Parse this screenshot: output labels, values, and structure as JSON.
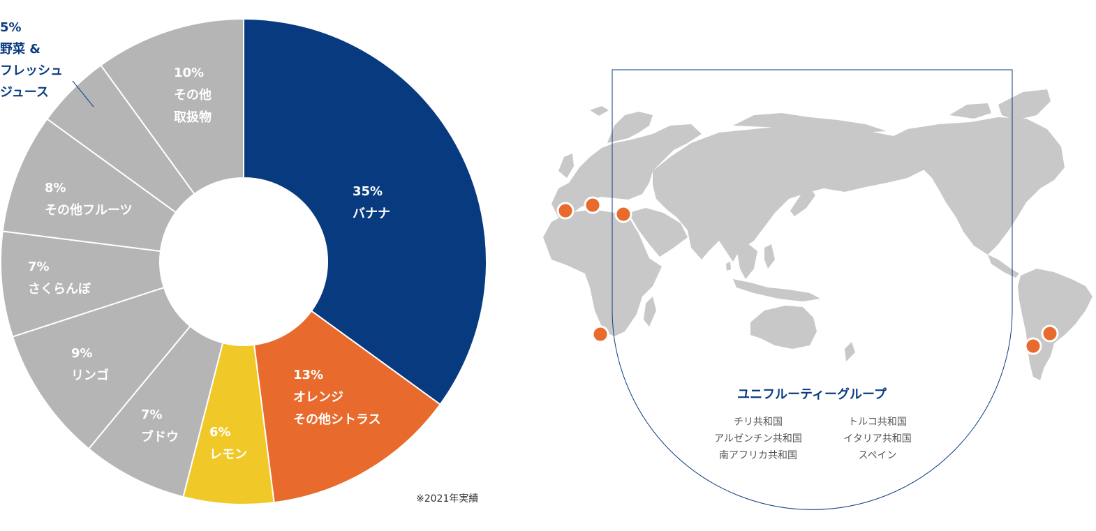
{
  "colors": {
    "banana": "#083a7f",
    "orange": "#e86a2c",
    "lemon": "#f0c928",
    "other": "#b5b5b5",
    "accent": "#0a3b80",
    "land": "#c8c8c8",
    "marker": "#e86a2c"
  },
  "chart_data": {
    "type": "pie",
    "donut": true,
    "start": "top, clockwise",
    "slices": [
      {
        "label_lines": [
          "35%",
          "バナナ"
        ],
        "value": 35,
        "color_key": "banana"
      },
      {
        "label_lines": [
          "13%",
          "オレンジ",
          "その他シトラス"
        ],
        "value": 13,
        "color_key": "orange"
      },
      {
        "label_lines": [
          "6%",
          "レモン"
        ],
        "value": 6,
        "color_key": "lemon"
      },
      {
        "label_lines": [
          "7%",
          "ブドウ"
        ],
        "value": 7,
        "color_key": "other"
      },
      {
        "label_lines": [
          "9%",
          "リンゴ"
        ],
        "value": 9,
        "color_key": "other"
      },
      {
        "label_lines": [
          "7%",
          "さくらんぼ"
        ],
        "value": 7,
        "color_key": "other"
      },
      {
        "label_lines": [
          "8%",
          "その他フルーツ"
        ],
        "value": 8,
        "color_key": "other"
      },
      {
        "label_lines": [
          "5%",
          "野菜 &",
          "フレッシュ",
          "ジュース"
        ],
        "value": 5,
        "color_key": "other",
        "outside": true
      },
      {
        "label_lines": [
          "10%",
          "その他",
          "取扱物"
        ],
        "value": 10,
        "color_key": "other"
      }
    ],
    "note": "※2021年実績"
  },
  "map": {
    "group_title": "ユニフルーティーグループ",
    "countries_left": [
      "チリ共和国",
      "アルゼンチン共和国",
      "南アフリカ共和国"
    ],
    "countries_right": [
      "トルコ共和国",
      "イタリア共和国",
      "スペイン"
    ],
    "markers": [
      "spain",
      "italy",
      "turkey",
      "south-africa",
      "chile",
      "argentina"
    ]
  }
}
